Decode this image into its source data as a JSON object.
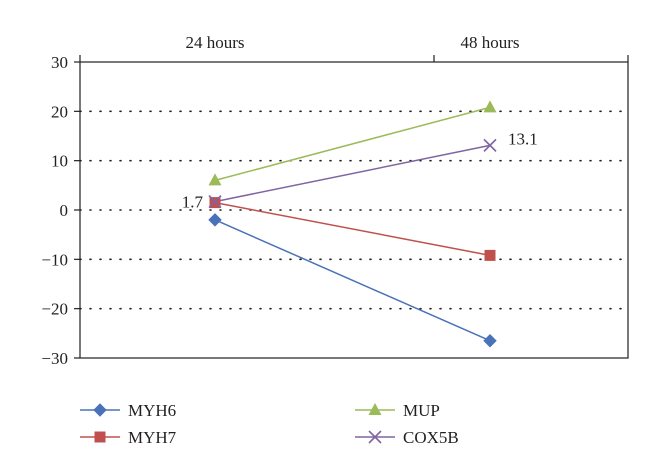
{
  "chart_data": {
    "type": "line",
    "categories": [
      "24 hours",
      "48 hours"
    ],
    "ylim": [
      -30,
      30
    ],
    "yticks": [
      "30",
      "20",
      "10",
      "0",
      "−10",
      "−20",
      "−30"
    ],
    "ytick_values": [
      30,
      20,
      10,
      0,
      -10,
      -20,
      -30
    ],
    "grid": true,
    "legend_position": "bottom",
    "series": [
      {
        "name": "MYH6",
        "values": [
          -2,
          -26.5
        ],
        "color": "#4a72b8",
        "marker": "diamond"
      },
      {
        "name": "MYH7",
        "values": [
          1.5,
          -9.2
        ],
        "color": "#c0504d",
        "marker": "square"
      },
      {
        "name": "MUP",
        "values": [
          6,
          20.8
        ],
        "color": "#9bbb59",
        "marker": "triangle"
      },
      {
        "name": "COX5B",
        "values": [
          1.7,
          13.1
        ],
        "color": "#8064a2",
        "marker": "x"
      }
    ],
    "annotations": [
      {
        "text": "1.7",
        "series": "COX5B",
        "index": 0
      },
      {
        "text": "13.1",
        "series": "COX5B",
        "index": 1
      }
    ]
  }
}
